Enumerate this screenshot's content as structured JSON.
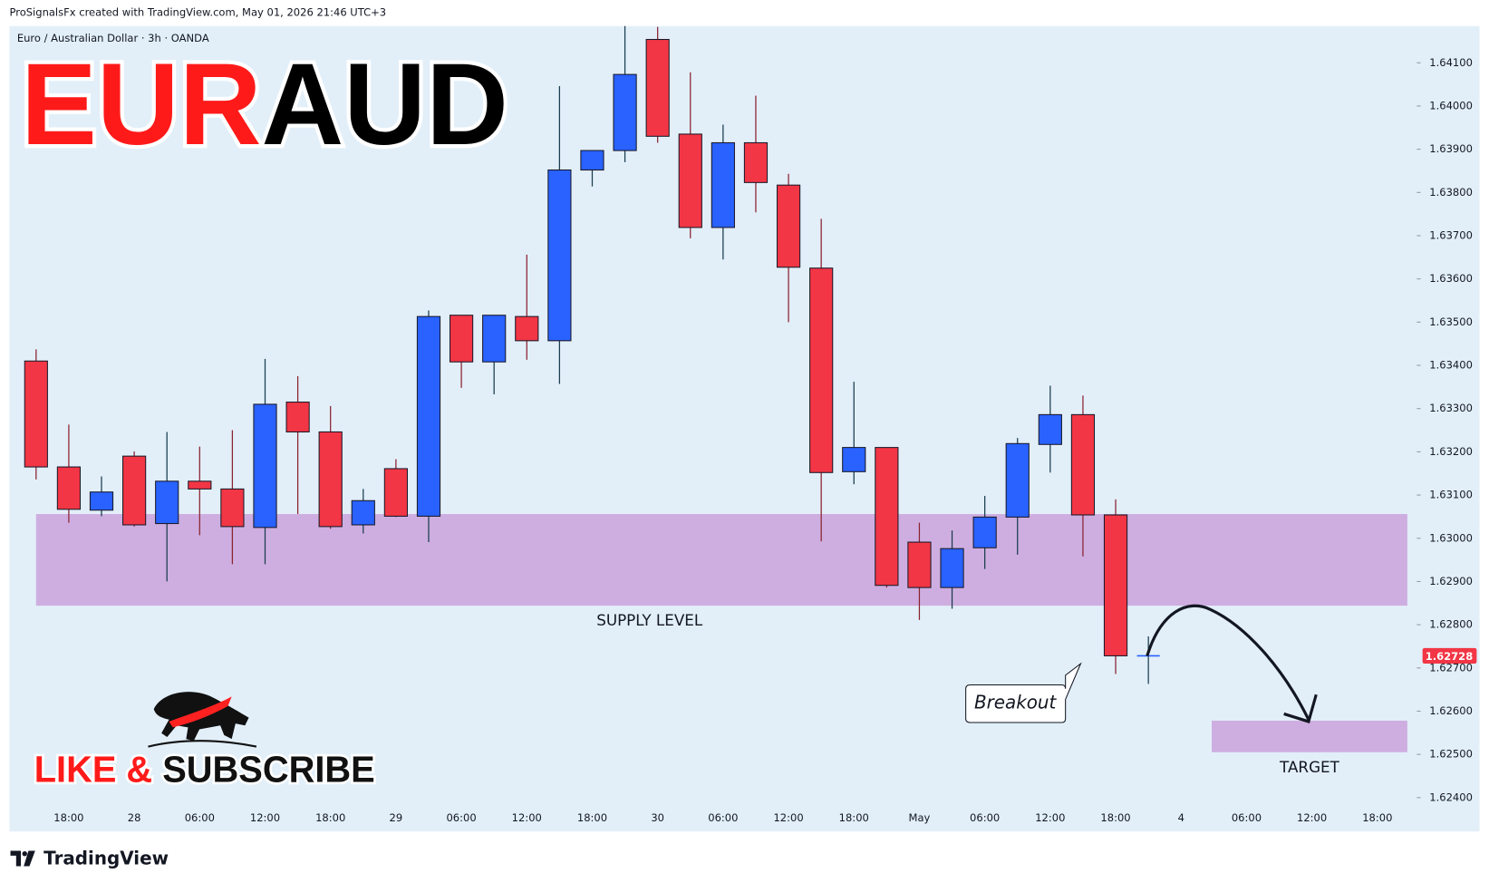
{
  "chart_data": {
    "type": "candlestick",
    "attribution": "ProSignalsFx created with TradingView.com, May 01, 2026 21:46 UTC+3",
    "symbol": "Euro / Australian Dollar · 3h · OANDA",
    "title": [
      "EUR",
      "AUD"
    ],
    "title_colors": [
      "#ff1a1a",
      "#000000"
    ],
    "cta": [
      "LIKE &",
      "SUBSCRIBE"
    ],
    "brand": "TradingView",
    "callout": "Breakout",
    "up_color": "#2962ff",
    "down_color": "#f23645",
    "grid": false,
    "categories": [
      null,
      "18:00",
      null,
      "28",
      null,
      "06:00",
      null,
      "12:00",
      null,
      "18:00",
      null,
      "29",
      null,
      "06:00",
      null,
      "12:00",
      null,
      "18:00",
      null,
      "30",
      null,
      "06:00",
      null,
      "12:00",
      null,
      "18:00",
      null,
      "May",
      null,
      "06:00",
      null,
      "12:00",
      null,
      "18:00",
      null,
      "4",
      null,
      "06:00",
      null,
      "12:00",
      null,
      "18:00"
    ],
    "open": [
      1.6341,
      1.63165,
      1.63065,
      1.6319,
      1.63034,
      1.63132,
      1.63114,
      1.63025,
      1.63315,
      1.63246,
      1.63031,
      1.63161,
      1.63051,
      1.63516,
      1.63408,
      1.63513,
      1.63457,
      1.63852,
      1.63897,
      1.64154,
      1.63935,
      1.63719,
      1.63915,
      1.63817,
      1.63625,
      1.63154,
      1.6321,
      1.62991,
      1.62886,
      1.62978,
      1.63049,
      1.63217,
      1.63286,
      1.63054,
      1.62728,
      null,
      null,
      null,
      null,
      null,
      null,
      null
    ],
    "high": [
      1.63437,
      1.63263,
      1.63143,
      1.63201,
      1.63246,
      1.63212,
      1.6325,
      1.63415,
      1.63375,
      1.63306,
      1.63114,
      1.63183,
      1.63527,
      1.63516,
      1.63516,
      1.63656,
      1.64046,
      1.63897,
      1.64185,
      1.64183,
      1.64078,
      1.63957,
      1.64024,
      1.63843,
      1.63739,
      1.63362,
      1.6321,
      1.63036,
      1.63018,
      1.63098,
      1.63232,
      1.63353,
      1.6333,
      1.6309,
      1.62773,
      null,
      null,
      null,
      null,
      null,
      null,
      null
    ],
    "low": [
      1.63136,
      1.63036,
      1.63051,
      1.63027,
      1.629,
      1.63007,
      1.6294,
      1.6294,
      1.63056,
      1.63022,
      1.63011,
      1.63049,
      1.62991,
      1.63348,
      1.63333,
      1.63413,
      1.63357,
      1.63814,
      1.6387,
      1.63915,
      1.63694,
      1.63645,
      1.63754,
      1.635,
      1.62993,
      1.63125,
      1.62886,
      1.62811,
      1.62837,
      1.62929,
      1.62962,
      1.63152,
      1.62958,
      1.62686,
      1.62663,
      null,
      null,
      null,
      null,
      null,
      null,
      null
    ],
    "close": [
      1.63165,
      1.63067,
      1.63107,
      1.63031,
      1.63132,
      1.63114,
      1.63027,
      1.6331,
      1.63246,
      1.63027,
      1.63087,
      1.63051,
      1.63513,
      1.63408,
      1.63516,
      1.63457,
      1.63852,
      1.63897,
      1.64073,
      1.6393,
      1.63719,
      1.63915,
      1.63823,
      1.63627,
      1.63152,
      1.6321,
      1.62891,
      1.62886,
      1.62976,
      1.63049,
      1.63219,
      1.63286,
      1.63054,
      1.62728,
      1.62728,
      null,
      null,
      null,
      null,
      null,
      null,
      null
    ],
    "ylim": [
      1.62326,
      1.64185
    ],
    "yticks": [
      {
        "value": 1.641,
        "label": "1.64100"
      },
      {
        "value": 1.64,
        "label": "1.64000"
      },
      {
        "value": 1.639,
        "label": "1.63900"
      },
      {
        "value": 1.638,
        "label": "1.63800"
      },
      {
        "value": 1.637,
        "label": "1.63700"
      },
      {
        "value": 1.636,
        "label": "1.63600"
      },
      {
        "value": 1.635,
        "label": "1.63500"
      },
      {
        "value": 1.634,
        "label": "1.63400"
      },
      {
        "value": 1.633,
        "label": "1.63300"
      },
      {
        "value": 1.632,
        "label": "1.63200"
      },
      {
        "value": 1.631,
        "label": "1.63100"
      },
      {
        "value": 1.63,
        "label": "1.63000"
      },
      {
        "value": 1.629,
        "label": "1.62900"
      },
      {
        "value": 1.628,
        "label": "1.62800"
      },
      {
        "value": 1.627,
        "label": "1.62700"
      },
      {
        "value": 1.626,
        "label": "1.62600"
      },
      {
        "value": 1.625,
        "label": "1.62500"
      },
      {
        "value": 1.624,
        "label": "1.62400"
      }
    ],
    "zones": [
      {
        "label": "SUPPLY LEVEL",
        "low": 1.62844,
        "high": 1.63056,
        "color": "#ceaee0"
      },
      {
        "label": "TARGET",
        "low": 1.62505,
        "high": 1.62578,
        "color": "#ceaee0"
      }
    ]
  }
}
